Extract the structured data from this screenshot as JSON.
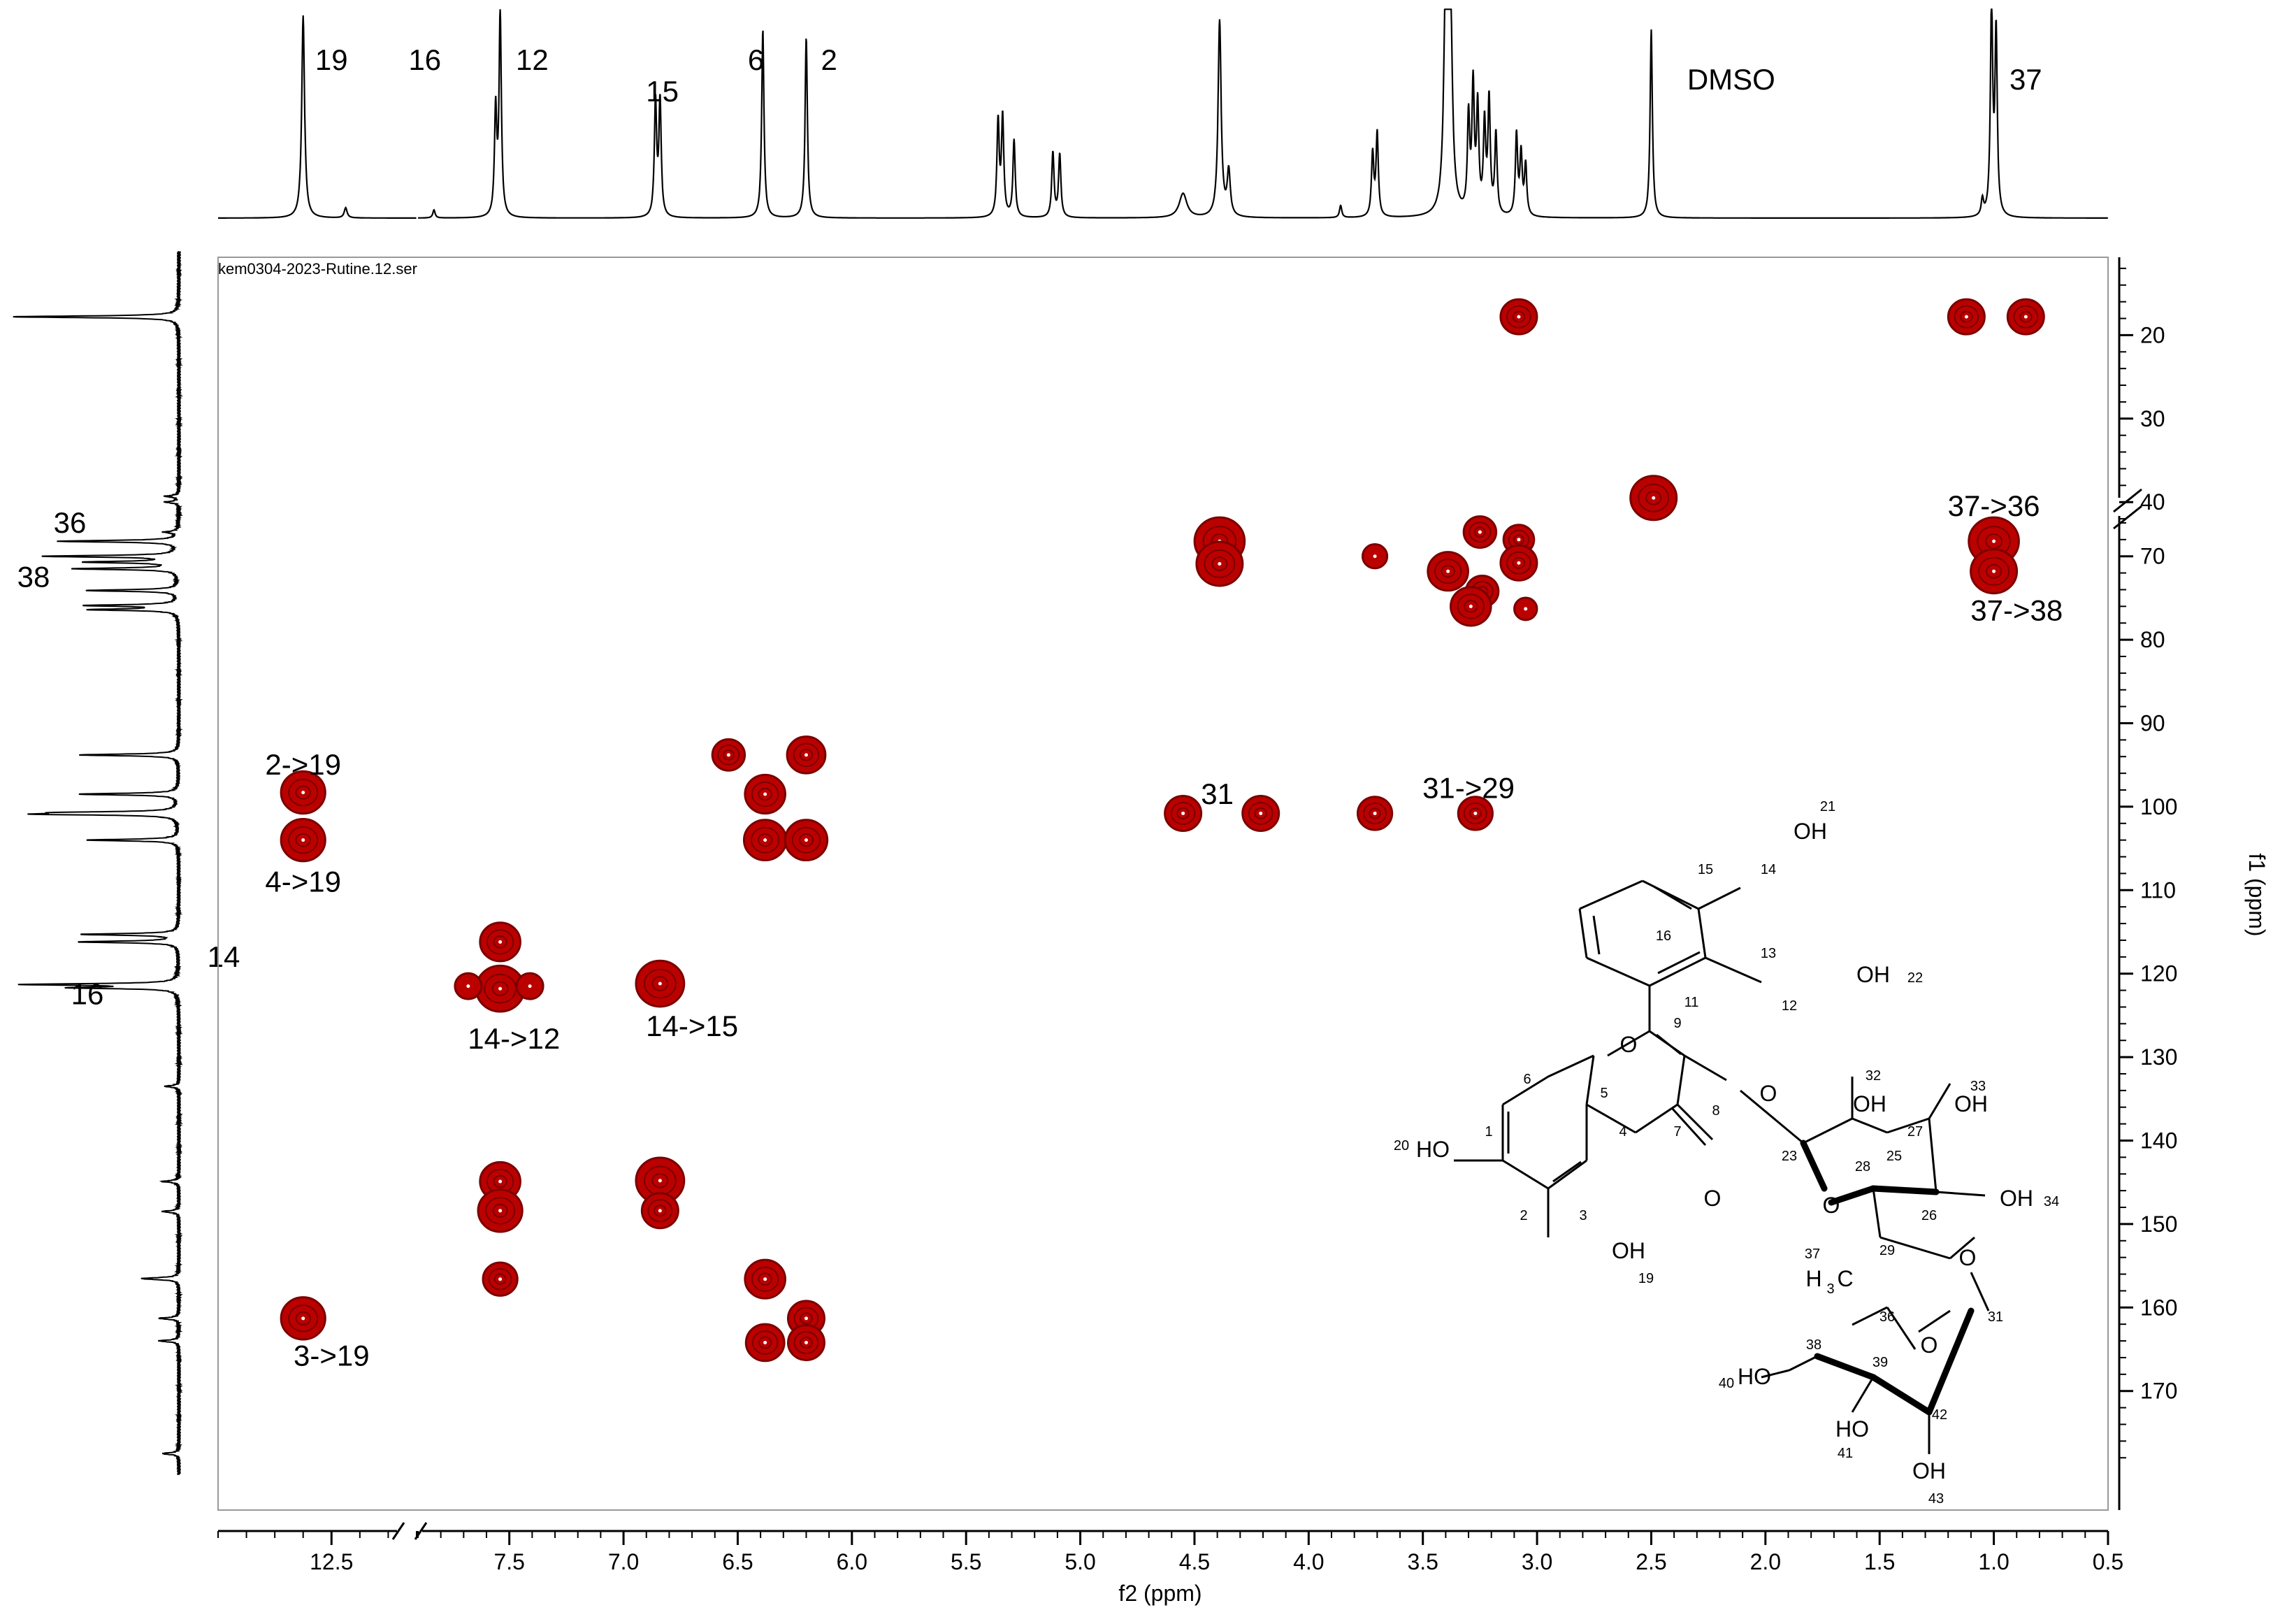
{
  "chart_data": {
    "type": "heatmap",
    "title": "",
    "file_label": "kem0304-2023-Rutine.12.ser",
    "xlabel": "f2 (ppm)",
    "ylabel": "f1 (ppm)",
    "xlim_display": [
      12.9,
      0.5
    ],
    "ylim": [
      10,
      180
    ],
    "x_axis_break": {
      "left_segment": [
        12.9,
        12.2
      ],
      "right_segment": [
        7.9,
        0.5
      ]
    },
    "y_axis_break_at": 42,
    "x_ticks": [
      {
        "value": 12.5,
        "label": "12.5"
      },
      {
        "value": 7.5,
        "label": "7.5"
      },
      {
        "value": 7.0,
        "label": "7.0"
      },
      {
        "value": 6.5,
        "label": "6.5"
      },
      {
        "value": 6.0,
        "label": "6.0"
      },
      {
        "value": 5.5,
        "label": "5.5"
      },
      {
        "value": 5.0,
        "label": "5.0"
      },
      {
        "value": 4.5,
        "label": "4.5"
      },
      {
        "value": 4.0,
        "label": "4.0"
      },
      {
        "value": 3.5,
        "label": "3.5"
      },
      {
        "value": 3.0,
        "label": "3.0"
      },
      {
        "value": 2.5,
        "label": "2.5"
      },
      {
        "value": 2.0,
        "label": "2.0"
      },
      {
        "value": 1.5,
        "label": "1.5"
      },
      {
        "value": 1.0,
        "label": "1.0"
      },
      {
        "value": 0.5,
        "label": "0.5"
      }
    ],
    "y_ticks": [
      {
        "value": 20,
        "label": "20"
      },
      {
        "value": 30,
        "label": "30"
      },
      {
        "value": 40,
        "label": "40"
      },
      {
        "value": 70,
        "label": "70"
      },
      {
        "value": 80,
        "label": "80"
      },
      {
        "value": 90,
        "label": "90"
      },
      {
        "value": 100,
        "label": "100"
      },
      {
        "value": 110,
        "label": "110"
      },
      {
        "value": 120,
        "label": "120"
      },
      {
        "value": 130,
        "label": "130"
      },
      {
        "value": 140,
        "label": "140"
      },
      {
        "value": 150,
        "label": "150"
      },
      {
        "value": 160,
        "label": "160"
      },
      {
        "value": 170,
        "label": "170"
      }
    ],
    "cross_peaks": [
      {
        "x": 3.08,
        "y": 17.8,
        "s": 1.0
      },
      {
        "x": 1.12,
        "y": 17.8,
        "s": 1.0
      },
      {
        "x": 0.86,
        "y": 17.8,
        "s": 1.0
      },
      {
        "x": 2.49,
        "y": 39.5,
        "s": 1.5
      },
      {
        "x": 4.39,
        "y": 68.2,
        "s": 1.7
      },
      {
        "x": 4.39,
        "y": 70.9,
        "s": 1.5
      },
      {
        "x": 3.71,
        "y": 70.0,
        "s": 0.4
      },
      {
        "x": 3.25,
        "y": 67.1,
        "s": 0.8
      },
      {
        "x": 3.08,
        "y": 68.0,
        "s": 0.7
      },
      {
        "x": 3.08,
        "y": 70.8,
        "s": 1.0
      },
      {
        "x": 3.39,
        "y": 71.8,
        "s": 1.2
      },
      {
        "x": 3.24,
        "y": 74.2,
        "s": 0.8
      },
      {
        "x": 3.29,
        "y": 76.0,
        "s": 1.2
      },
      {
        "x": 3.05,
        "y": 76.3,
        "s": 0.3
      },
      {
        "x": 1.0,
        "y": 68.2,
        "s": 1.7
      },
      {
        "x": 1.0,
        "y": 71.8,
        "s": 1.5
      },
      {
        "x": 12.6,
        "y": 98.3,
        "s": 1.4
      },
      {
        "x": 12.6,
        "y": 104.0,
        "s": 1.4
      },
      {
        "x": 6.54,
        "y": 93.8,
        "s": 0.8
      },
      {
        "x": 6.2,
        "y": 93.8,
        "s": 1.1
      },
      {
        "x": 6.38,
        "y": 98.5,
        "s": 1.2
      },
      {
        "x": 6.38,
        "y": 104.0,
        "s": 1.3
      },
      {
        "x": 6.2,
        "y": 104.0,
        "s": 1.3
      },
      {
        "x": 4.55,
        "y": 100.8,
        "s": 1.0
      },
      {
        "x": 4.21,
        "y": 100.8,
        "s": 1.0
      },
      {
        "x": 3.71,
        "y": 100.8,
        "s": 0.9
      },
      {
        "x": 3.27,
        "y": 100.8,
        "s": 0.9
      },
      {
        "x": 7.54,
        "y": 116.2,
        "s": 1.2
      },
      {
        "x": 7.54,
        "y": 121.8,
        "s": 1.6
      },
      {
        "x": 7.68,
        "y": 121.5,
        "s": 0.5
      },
      {
        "x": 7.41,
        "y": 121.5,
        "s": 0.5
      },
      {
        "x": 6.84,
        "y": 121.2,
        "s": 1.6
      },
      {
        "x": 7.54,
        "y": 144.9,
        "s": 1.2
      },
      {
        "x": 7.54,
        "y": 148.4,
        "s": 1.4
      },
      {
        "x": 6.84,
        "y": 144.8,
        "s": 1.6
      },
      {
        "x": 6.84,
        "y": 148.4,
        "s": 1.0
      },
      {
        "x": 7.54,
        "y": 156.6,
        "s": 0.9
      },
      {
        "x": 6.38,
        "y": 156.6,
        "s": 1.2
      },
      {
        "x": 6.2,
        "y": 161.3,
        "s": 1.0
      },
      {
        "x": 6.2,
        "y": 164.2,
        "s": 1.0
      },
      {
        "x": 6.38,
        "y": 164.2,
        "s": 1.1
      },
      {
        "x": 12.6,
        "y": 161.3,
        "s": 1.4
      }
    ],
    "annotations": [
      {
        "text": "2->19",
        "x": 12.6,
        "y": 95.0
      },
      {
        "text": "4->19",
        "x": 12.6,
        "y": 109.0
      },
      {
        "text": "14->12",
        "x": 7.48,
        "y": 127.8
      },
      {
        "text": "14->15",
        "x": 6.7,
        "y": 126.3
      },
      {
        "text": "31",
        "x": 4.4,
        "y": 98.5
      },
      {
        "text": "31->29",
        "x": 3.3,
        "y": 97.8
      },
      {
        "text": "37->36",
        "x": 1.0,
        "y": 64.0
      },
      {
        "text": "37->38",
        "x": 0.9,
        "y": 76.5
      },
      {
        "text": "3->19",
        "x": 12.5,
        "y": 165.8
      }
    ],
    "top_projection_labels": [
      {
        "text": "19",
        "x": 12.5
      },
      {
        "text": "16",
        "x": 7.87
      },
      {
        "text": "12",
        "x": 7.4
      },
      {
        "text": "15",
        "x": 6.83
      },
      {
        "text": "6",
        "x": 6.42
      },
      {
        "text": "2",
        "x": 6.1
      },
      {
        "text": "DMSO",
        "x": 2.15
      },
      {
        "text": "37",
        "x": 0.86
      }
    ],
    "top_projection_peaks": [
      {
        "x": 12.6,
        "h": 1.0,
        "w": 0.006
      },
      {
        "x": 12.45,
        "h": 0.05,
        "w": 0.006
      },
      {
        "x": 7.83,
        "h": 0.04,
        "w": 0.006
      },
      {
        "x": 7.56,
        "h": 0.52,
        "w": 0.006
      },
      {
        "x": 7.54,
        "h": 1.0,
        "w": 0.006
      },
      {
        "x": 6.86,
        "h": 0.57,
        "w": 0.006
      },
      {
        "x": 6.84,
        "h": 0.57,
        "w": 0.006
      },
      {
        "x": 6.39,
        "h": 0.93,
        "w": 0.006
      },
      {
        "x": 6.2,
        "h": 0.89,
        "w": 0.006
      },
      {
        "x": 5.36,
        "h": 0.47,
        "w": 0.006
      },
      {
        "x": 5.34,
        "h": 0.49,
        "w": 0.006
      },
      {
        "x": 5.29,
        "h": 0.38,
        "w": 0.006
      },
      {
        "x": 5.12,
        "h": 0.32,
        "w": 0.006
      },
      {
        "x": 5.09,
        "h": 0.31,
        "w": 0.006
      },
      {
        "x": 4.55,
        "h": 0.12,
        "w": 0.02
      },
      {
        "x": 4.39,
        "h": 0.97,
        "w": 0.008
      },
      {
        "x": 4.35,
        "h": 0.22,
        "w": 0.008
      },
      {
        "x": 3.86,
        "h": 0.06,
        "w": 0.006
      },
      {
        "x": 3.72,
        "h": 0.31,
        "w": 0.006
      },
      {
        "x": 3.7,
        "h": 0.41,
        "w": 0.006
      },
      {
        "x": 3.4,
        "h": 1.05,
        "w": 0.01
      },
      {
        "x": 3.38,
        "h": 1.05,
        "w": 0.01
      },
      {
        "x": 3.3,
        "h": 0.47,
        "w": 0.006
      },
      {
        "x": 3.28,
        "h": 0.62,
        "w": 0.006
      },
      {
        "x": 3.26,
        "h": 0.52,
        "w": 0.006
      },
      {
        "x": 3.23,
        "h": 0.44,
        "w": 0.006
      },
      {
        "x": 3.21,
        "h": 0.56,
        "w": 0.006
      },
      {
        "x": 3.18,
        "h": 0.4,
        "w": 0.006
      },
      {
        "x": 3.09,
        "h": 0.4,
        "w": 0.006
      },
      {
        "x": 3.07,
        "h": 0.3,
        "w": 0.006
      },
      {
        "x": 3.05,
        "h": 0.25,
        "w": 0.006
      },
      {
        "x": 2.5,
        "h": 0.93,
        "w": 0.006
      },
      {
        "x": 1.01,
        "h": 1.05,
        "w": 0.006
      },
      {
        "x": 0.99,
        "h": 0.9,
        "w": 0.006
      },
      {
        "x": 1.05,
        "h": 0.08,
        "w": 0.006
      }
    ],
    "left_projection_labels": [
      {
        "text": "36",
        "y": 66.0
      },
      {
        "text": "38",
        "y": 72.5
      },
      {
        "text": "14",
        "y": 118.0
      },
      {
        "text": "16",
        "y": 122.5
      }
    ],
    "left_projection_peaks": [
      {
        "y": 17.8,
        "h": 1.0
      },
      {
        "y": 39.3,
        "h": 0.08
      },
      {
        "y": 40.0,
        "h": 0.08
      },
      {
        "y": 67.1,
        "h": 0.08
      },
      {
        "y": 68.2,
        "h": 0.72
      },
      {
        "y": 70.0,
        "h": 0.8
      },
      {
        "y": 70.7,
        "h": 0.55
      },
      {
        "y": 71.5,
        "h": 0.62
      },
      {
        "y": 74.1,
        "h": 0.55
      },
      {
        "y": 75.9,
        "h": 0.55
      },
      {
        "y": 76.4,
        "h": 0.52
      },
      {
        "y": 93.8,
        "h": 0.6
      },
      {
        "y": 98.5,
        "h": 0.6
      },
      {
        "y": 100.7,
        "h": 0.58
      },
      {
        "y": 100.9,
        "h": 0.74
      },
      {
        "y": 104.0,
        "h": 0.55
      },
      {
        "y": 115.3,
        "h": 0.58
      },
      {
        "y": 116.2,
        "h": 0.6
      },
      {
        "y": 121.3,
        "h": 0.9
      },
      {
        "y": 121.7,
        "h": 0.6
      },
      {
        "y": 133.5,
        "h": 0.08
      },
      {
        "y": 144.9,
        "h": 0.1
      },
      {
        "y": 148.5,
        "h": 0.1
      },
      {
        "y": 156.5,
        "h": 0.15
      },
      {
        "y": 156.6,
        "h": 0.1
      },
      {
        "y": 161.3,
        "h": 0.12
      },
      {
        "y": 164.0,
        "h": 0.12
      },
      {
        "y": 177.5,
        "h": 0.1
      }
    ]
  },
  "molecule": {
    "atom_labels": [
      {
        "id": "OH21",
        "text": "OH"
      },
      {
        "id": "n21",
        "text": "21"
      },
      {
        "id": "n15",
        "text": "15"
      },
      {
        "id": "n14",
        "text": "14"
      },
      {
        "id": "n16",
        "text": "16"
      },
      {
        "id": "n13",
        "text": "13"
      },
      {
        "id": "OH22",
        "text": "OH"
      },
      {
        "id": "n22",
        "text": "22"
      },
      {
        "id": "n11",
        "text": "11"
      },
      {
        "id": "n12",
        "text": "12"
      },
      {
        "id": "n9",
        "text": "9"
      },
      {
        "id": "O_ring",
        "text": "O"
      },
      {
        "id": "n6",
        "text": "6"
      },
      {
        "id": "n5",
        "text": "5"
      },
      {
        "id": "n4",
        "text": "4"
      },
      {
        "id": "n7",
        "text": "7"
      },
      {
        "id": "n8",
        "text": "8"
      },
      {
        "id": "O_8",
        "text": "O"
      },
      {
        "id": "n20",
        "text": "20"
      },
      {
        "id": "HO20",
        "text": "HO"
      },
      {
        "id": "n1",
        "text": "1"
      },
      {
        "id": "n2",
        "text": "2"
      },
      {
        "id": "n3",
        "text": "3"
      },
      {
        "id": "O_7",
        "text": "O"
      },
      {
        "id": "OH19",
        "text": "OH"
      },
      {
        "id": "n19",
        "text": "19"
      },
      {
        "id": "n32",
        "text": "32"
      },
      {
        "id": "OH32",
        "text": "OH"
      },
      {
        "id": "n33",
        "text": "33"
      },
      {
        "id": "OH33",
        "text": "OH"
      },
      {
        "id": "n27",
        "text": "27"
      },
      {
        "id": "n25",
        "text": "25"
      },
      {
        "id": "n28",
        "text": "28"
      },
      {
        "id": "n23",
        "text": "23"
      },
      {
        "id": "O_sugar1",
        "text": "O"
      },
      {
        "id": "n26",
        "text": "26"
      },
      {
        "id": "OH34",
        "text": "OH"
      },
      {
        "id": "n34",
        "text": "34"
      },
      {
        "id": "n29",
        "text": "29"
      },
      {
        "id": "O_29",
        "text": "O"
      },
      {
        "id": "n37",
        "text": "37"
      },
      {
        "id": "H3C",
        "text": "H"
      },
      {
        "id": "H3C_sub",
        "text": "3"
      },
      {
        "id": "H3C_C",
        "text": "C"
      },
      {
        "id": "n36",
        "text": "36"
      },
      {
        "id": "n31",
        "text": "31"
      },
      {
        "id": "n38",
        "text": "38"
      },
      {
        "id": "O_sugar2",
        "text": "O"
      },
      {
        "id": "n39",
        "text": "39"
      },
      {
        "id": "n40",
        "text": "40"
      },
      {
        "id": "HO40",
        "text": "HO"
      },
      {
        "id": "n42",
        "text": "42"
      },
      {
        "id": "HO41",
        "text": "HO"
      },
      {
        "id": "n41",
        "text": "41"
      },
      {
        "id": "OH43",
        "text": "OH"
      },
      {
        "id": "n43",
        "text": "43"
      }
    ]
  },
  "colors": {
    "peak_fill": "#bb0000",
    "peak_outline": "#7a0000",
    "peak_center": "#ffffff",
    "axis": "#000000"
  }
}
